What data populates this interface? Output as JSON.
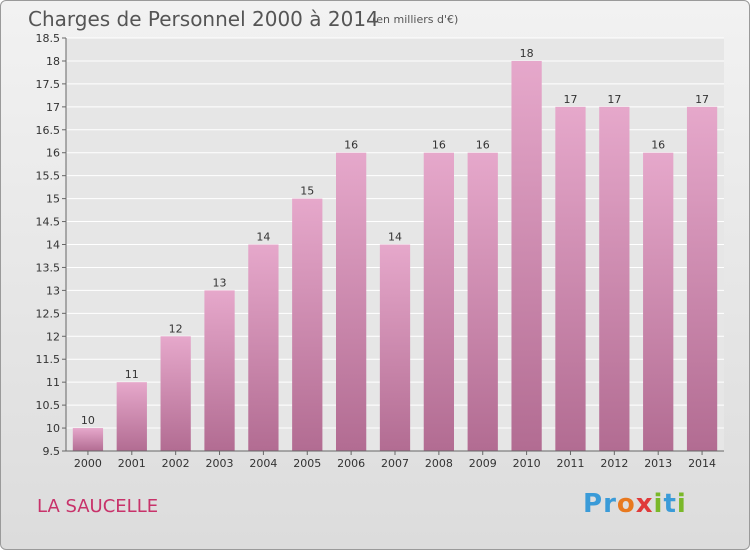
{
  "header": {
    "title": "Charges de Personnel 2000 à 2014",
    "subtitle": "(en milliers d'€)"
  },
  "footer": {
    "city": "LA SAUCELLE",
    "logo_letters": [
      "P",
      "r",
      "o",
      "x",
      "i",
      "t",
      "i"
    ],
    "logo_colors": [
      "#3a9bd8",
      "#3a9bd8",
      "#e8791f",
      "#e03a3a",
      "#7ab829",
      "#3a9bd8",
      "#7ab829"
    ]
  },
  "chart_data": {
    "type": "bar",
    "categories": [
      "2000",
      "2001",
      "2002",
      "2003",
      "2004",
      "2005",
      "2006",
      "2007",
      "2008",
      "2009",
      "2010",
      "2011",
      "2012",
      "2013",
      "2014"
    ],
    "values": [
      10,
      11,
      12,
      13,
      14,
      15,
      16,
      14,
      16,
      16,
      18,
      17,
      17,
      16,
      17
    ],
    "value_labels": [
      "10",
      "11",
      "12",
      "13",
      "14",
      "15",
      "16",
      "14",
      "16",
      "16",
      "18",
      "17",
      "17",
      "16",
      "17"
    ],
    "yticks": [
      9.5,
      10,
      10.5,
      11,
      11.5,
      12,
      12.5,
      13,
      13.5,
      14,
      14.5,
      15,
      15.5,
      16,
      16.5,
      17,
      17.5,
      18,
      18.5
    ],
    "ytick_labels": [
      "9.5",
      "10",
      "10.5",
      "11",
      "11.5",
      "12",
      "12.5",
      "13",
      "13.5",
      "14",
      "14.5",
      "15",
      "15.5",
      "16",
      "16.5",
      "17",
      "17.5",
      "18",
      "18.5"
    ],
    "ylim": [
      9.5,
      18.5
    ],
    "grid": true,
    "bar_color_top": "#e6a8cb",
    "bar_color_bottom": "#b26c92"
  }
}
